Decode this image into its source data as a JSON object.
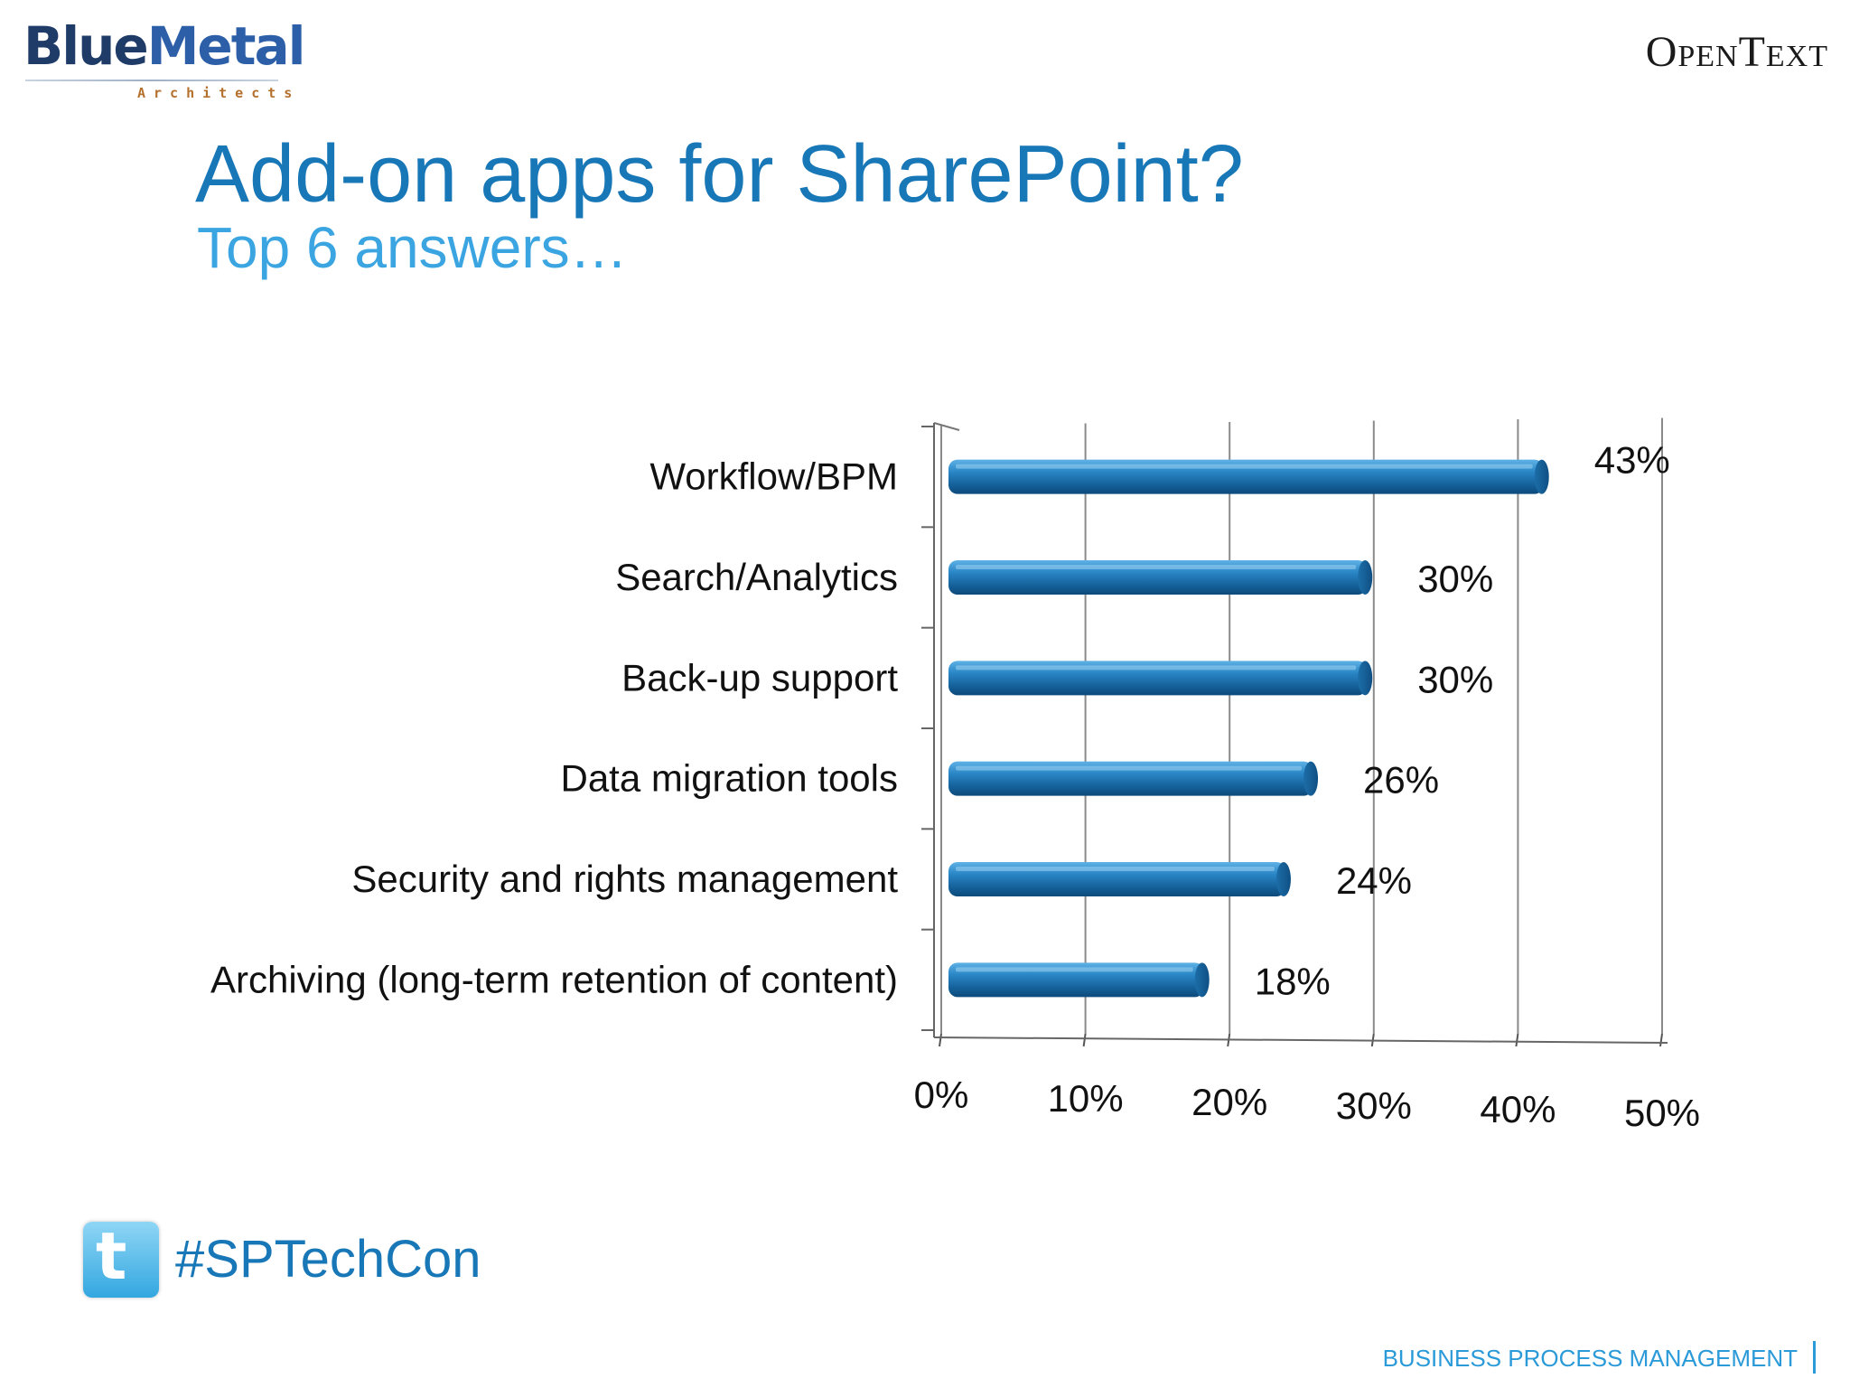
{
  "logos": {
    "left_word_1": "Blue",
    "left_word_2": "Metal",
    "left_sub": "Architects",
    "right": "OpenText"
  },
  "slide": {
    "title": "Add-on apps for SharePoint?",
    "subtitle": "Top 6 answers…",
    "hashtag": "#SPTechCon",
    "footer": "BUSINESS PROCESS MANAGEMENT"
  },
  "chart_data": {
    "type": "bar",
    "orientation": "horizontal",
    "categories": [
      "Workflow/BPM",
      "Search/Analytics",
      "Back-up support",
      "Data migration tools",
      "Security and rights management",
      "Archiving (long-term retention of content)"
    ],
    "values": [
      43,
      30,
      30,
      26,
      24,
      18
    ],
    "value_labels": [
      "43%",
      "30%",
      "30%",
      "26%",
      "24%",
      "18%"
    ],
    "x_ticks": [
      "0%",
      "10%",
      "20%",
      "30%",
      "40%",
      "50%"
    ],
    "xlim": [
      0,
      50
    ],
    "grid": true,
    "style": "3d-cylinder",
    "bar_color": "#1b73b0"
  }
}
